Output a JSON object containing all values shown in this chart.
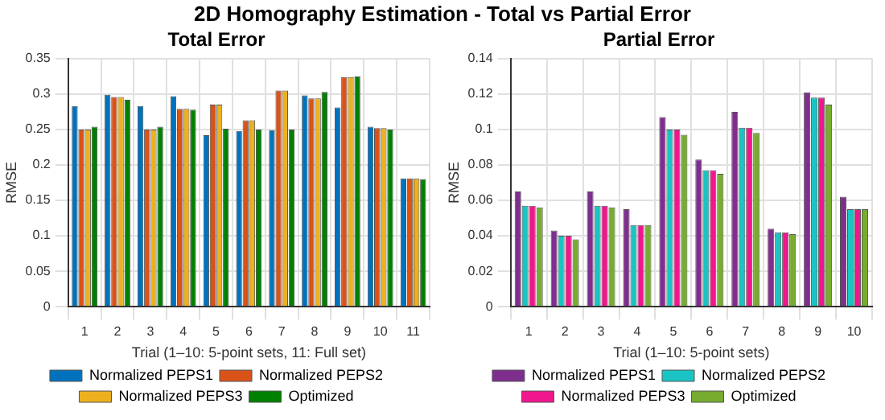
{
  "chart_data": [
    {
      "type": "bar",
      "annotations": [
        "2D Homography Estimation - Total vs Partial Error"
      ],
      "title": "Total Error",
      "xlabel": "Trial (1–10: 5-point sets, 11: Full set)",
      "ylabel": "RMSE",
      "categories": [
        "1",
        "2",
        "3",
        "4",
        "5",
        "6",
        "7",
        "8",
        "9",
        "10",
        "11"
      ],
      "series": [
        {
          "name": "Normalized PEPS1",
          "color": "#0072bd",
          "values": [
            0.283,
            0.299,
            0.283,
            0.297,
            0.242,
            0.248,
            0.249,
            0.298,
            0.281,
            0.254,
            0.181
          ]
        },
        {
          "name": "Normalized PEPS2",
          "color": "#d95319",
          "values": [
            0.25,
            0.296,
            0.25,
            0.279,
            0.285,
            0.263,
            0.305,
            0.294,
            0.324,
            0.252,
            0.181
          ]
        },
        {
          "name": "Normalized PEPS3",
          "color": "#edb120",
          "values": [
            0.25,
            0.296,
            0.25,
            0.279,
            0.285,
            0.263,
            0.305,
            0.294,
            0.324,
            0.252,
            0.181
          ]
        },
        {
          "name": "Optimized",
          "color": "#008000",
          "values": [
            0.254,
            0.292,
            0.254,
            0.278,
            0.251,
            0.25,
            0.25,
            0.303,
            0.325,
            0.25,
            0.18
          ]
        }
      ],
      "ylim": [
        0,
        0.35
      ],
      "yticks": [
        0,
        0.05,
        0.1,
        0.15,
        0.2,
        0.25,
        0.3,
        0.35
      ],
      "grid": true,
      "legend": "bottom"
    },
    {
      "type": "bar",
      "title": "Partial Error",
      "xlabel": "Trial (1–10: 5-point sets)",
      "ylabel": "RMSE",
      "categories": [
        "1",
        "2",
        "3",
        "4",
        "5",
        "6",
        "7",
        "8",
        "9",
        "10"
      ],
      "series": [
        {
          "name": "Normalized PEPS1",
          "color": "#7e2f8e",
          "values": [
            0.065,
            0.043,
            0.065,
            0.055,
            0.107,
            0.083,
            0.11,
            0.044,
            0.121,
            0.062
          ]
        },
        {
          "name": "Normalized PEPS2",
          "color": "#1ac4c4",
          "values": [
            0.057,
            0.04,
            0.057,
            0.046,
            0.1,
            0.077,
            0.101,
            0.042,
            0.118,
            0.055
          ]
        },
        {
          "name": "Normalized PEPS3",
          "color": "#f0168c",
          "values": [
            0.057,
            0.04,
            0.057,
            0.046,
            0.1,
            0.077,
            0.101,
            0.042,
            0.118,
            0.055
          ]
        },
        {
          "name": "Optimized",
          "color": "#77ac30",
          "values": [
            0.056,
            0.038,
            0.056,
            0.046,
            0.097,
            0.075,
            0.098,
            0.041,
            0.114,
            0.055
          ]
        }
      ],
      "ylim": [
        0,
        0.14
      ],
      "yticks": [
        0,
        0.02,
        0.04,
        0.06,
        0.08,
        0.1,
        0.12,
        0.14
      ],
      "grid": true,
      "legend": "bottom"
    }
  ]
}
